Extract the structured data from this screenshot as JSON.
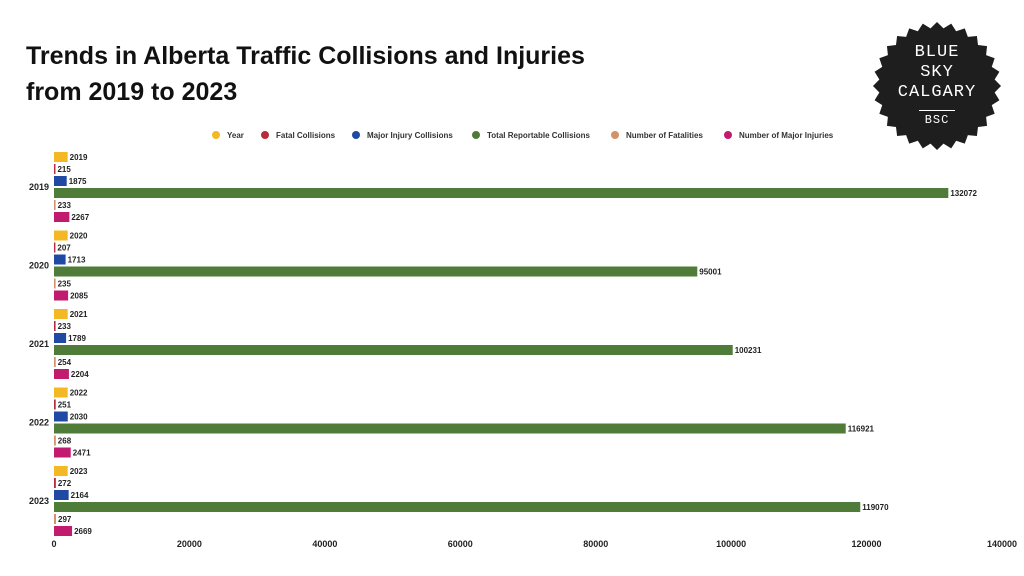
{
  "header": {
    "title_line1": "Trends in Alberta Traffic Collisions and Injuries",
    "title_line2": "from 2019 to 2023"
  },
  "badge": {
    "line1": "BLUE",
    "line2": "SKY",
    "line3": "CALGARY",
    "abbr": "BSC"
  },
  "chart_data": {
    "type": "bar",
    "orientation": "horizontal",
    "title": "Trends in Alberta Traffic Collisions and Injuries from 2019 to 2023",
    "xlabel": "",
    "ylabel": "",
    "xlim": [
      0,
      140000
    ],
    "x_ticks": [
      0,
      20000,
      40000,
      60000,
      80000,
      100000,
      120000,
      140000
    ],
    "grid": false,
    "legend_position": "top",
    "data_labels": true,
    "categories": [
      "2019",
      "2020",
      "2021",
      "2022",
      "2023"
    ],
    "series": [
      {
        "name": "Year",
        "color": "#f4b824",
        "values": [
          2019,
          2020,
          2021,
          2022,
          2023
        ]
      },
      {
        "name": "Fatal Collisions",
        "color": "#b52c3c",
        "values": [
          215,
          207,
          233,
          251,
          272
        ]
      },
      {
        "name": "Major Injury Collisions",
        "color": "#1f49a3",
        "values": [
          1875,
          1713,
          1789,
          2030,
          2164
        ]
      },
      {
        "name": "Total Reportable Collisions",
        "color": "#4f7d39",
        "values": [
          132072,
          95001,
          100231,
          116921,
          119070
        ]
      },
      {
        "name": "Number of Fatalities",
        "color": "#d4926b",
        "values": [
          233,
          235,
          254,
          268,
          297
        ]
      },
      {
        "name": "Number of Major Injuries",
        "color": "#c01b6e",
        "values": [
          2267,
          2085,
          2204,
          2471,
          2669
        ]
      }
    ]
  }
}
